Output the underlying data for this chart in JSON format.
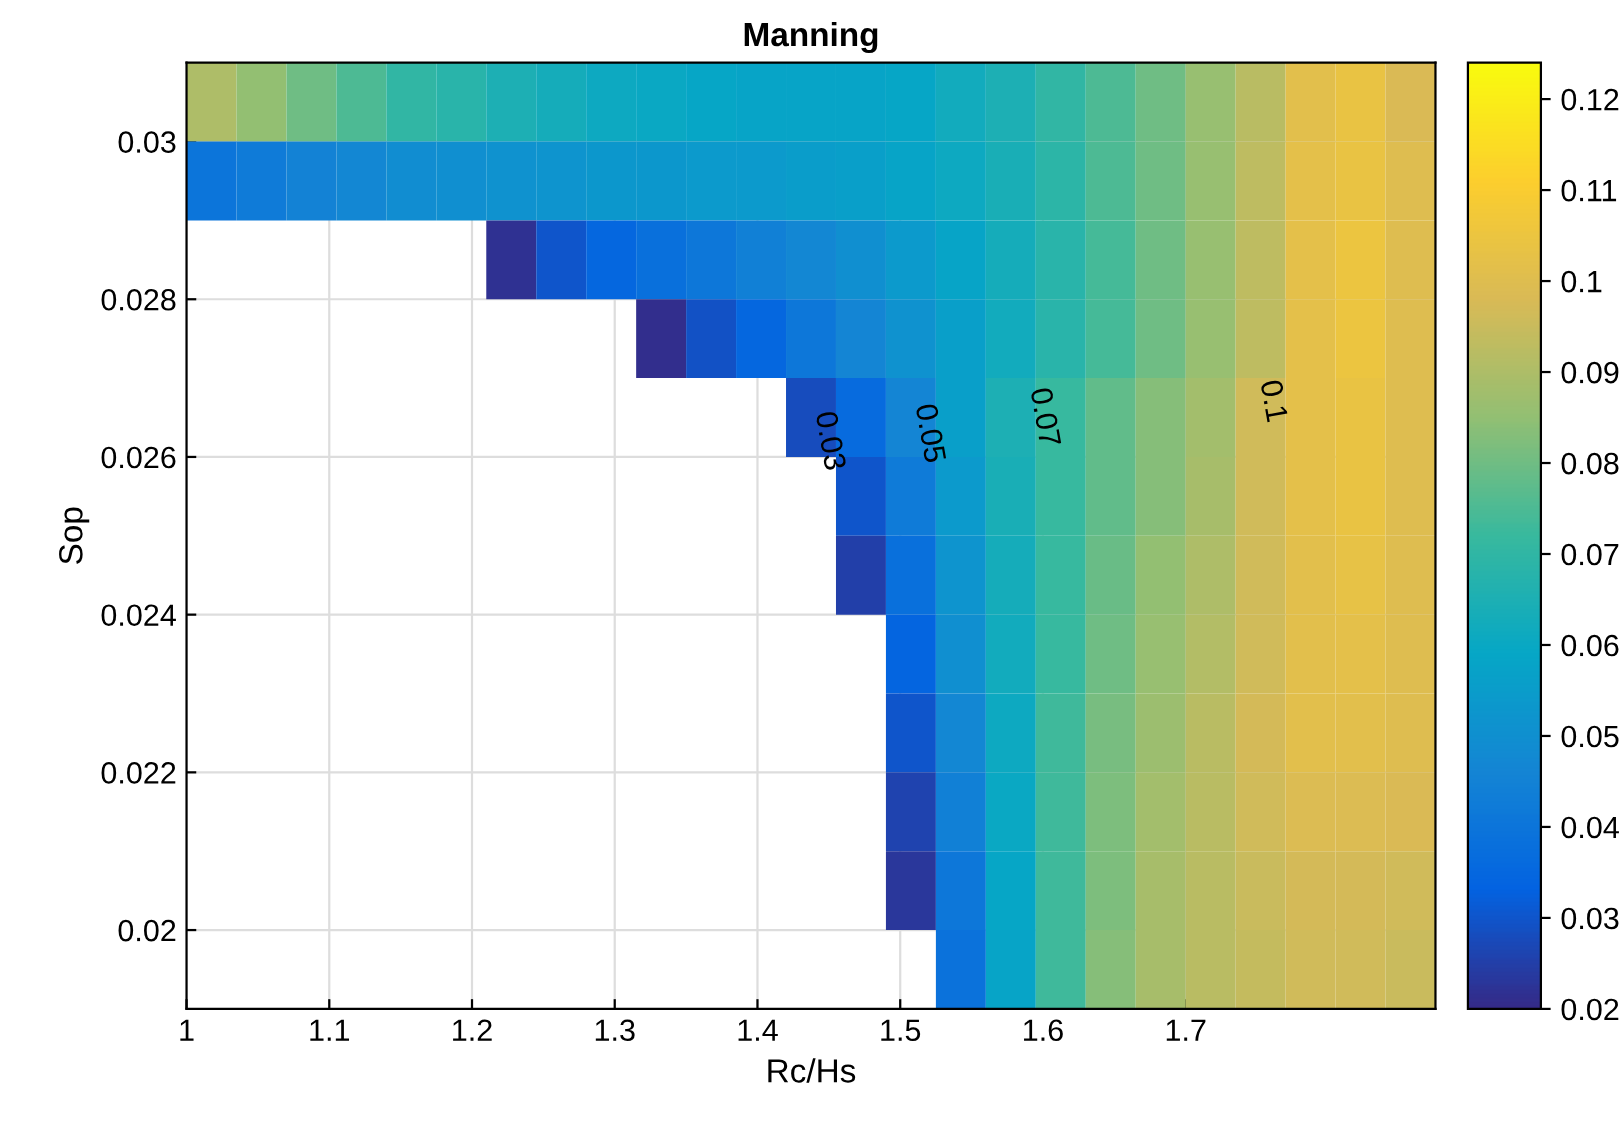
{
  "chart_data": {
    "type": "heatmap",
    "title": "Manning",
    "xlabel": "Rc/Hs",
    "ylabel": "Sop",
    "xlim": [
      1,
      1.875
    ],
    "ylim": [
      0.019,
      0.031
    ],
    "xticks": [
      1,
      1.1,
      1.2,
      1.3,
      1.4,
      1.5,
      1.6,
      1.7
    ],
    "yticks": [
      0.02,
      0.022,
      0.024,
      0.026,
      0.028,
      0.03
    ],
    "clim": [
      0.02,
      0.124
    ],
    "cticks": [
      0.02,
      0.03,
      0.04,
      0.05,
      0.06,
      0.07,
      0.08,
      0.09,
      0.1,
      0.11,
      0.12
    ],
    "grid": true,
    "cells": [
      [
        0.09,
        0.085,
        0.08,
        0.075,
        0.07,
        0.068,
        0.065,
        0.063,
        0.061,
        0.06,
        0.059,
        0.058,
        0.058,
        0.058,
        0.059,
        0.062,
        0.065,
        0.07,
        0.075,
        0.08,
        0.086,
        0.092,
        0.101,
        0.104,
        0.098
      ],
      [
        0.04,
        0.042,
        0.045,
        0.047,
        0.049,
        0.05,
        0.051,
        0.052,
        0.053,
        0.053,
        0.054,
        0.054,
        0.055,
        0.056,
        0.058,
        0.061,
        0.064,
        0.069,
        0.075,
        0.08,
        0.086,
        0.093,
        0.102,
        0.104,
        0.1
      ],
      [
        null,
        null,
        null,
        null,
        null,
        null,
        0.022,
        0.03,
        0.035,
        0.038,
        0.041,
        0.044,
        0.047,
        0.05,
        0.054,
        0.058,
        0.063,
        0.068,
        0.074,
        0.08,
        0.086,
        0.093,
        0.102,
        0.105,
        0.1
      ],
      [
        null,
        null,
        null,
        null,
        null,
        null,
        null,
        null,
        null,
        0.021,
        0.029,
        0.035,
        0.041,
        0.046,
        0.051,
        0.056,
        0.062,
        0.068,
        0.074,
        0.08,
        0.086,
        0.093,
        0.102,
        0.105,
        0.1
      ],
      [
        null,
        null,
        null,
        null,
        null,
        null,
        null,
        null,
        null,
        null,
        null,
        null,
        0.028,
        0.036,
        0.046,
        0.056,
        0.065,
        0.072,
        0.078,
        0.083,
        0.088,
        0.096,
        0.102,
        0.104,
        0.1
      ],
      [
        null,
        null,
        null,
        null,
        null,
        null,
        null,
        null,
        null,
        null,
        null,
        null,
        null,
        0.03,
        0.042,
        0.054,
        0.064,
        0.072,
        0.078,
        0.083,
        0.089,
        0.096,
        0.102,
        0.104,
        0.1
      ],
      [
        null,
        null,
        null,
        null,
        null,
        null,
        null,
        null,
        null,
        null,
        null,
        null,
        null,
        0.025,
        0.038,
        0.052,
        0.063,
        0.072,
        0.079,
        0.085,
        0.09,
        0.096,
        0.101,
        0.103,
        0.1
      ],
      [
        null,
        null,
        null,
        null,
        null,
        null,
        null,
        null,
        null,
        null,
        null,
        null,
        null,
        null,
        0.034,
        0.05,
        0.062,
        0.072,
        0.08,
        0.086,
        0.091,
        0.096,
        0.101,
        0.102,
        0.1
      ],
      [
        null,
        null,
        null,
        null,
        null,
        null,
        null,
        null,
        null,
        null,
        null,
        null,
        null,
        null,
        0.03,
        0.047,
        0.061,
        0.073,
        0.081,
        0.087,
        0.092,
        0.097,
        0.101,
        0.101,
        0.1
      ],
      [
        null,
        null,
        null,
        null,
        null,
        null,
        null,
        null,
        null,
        null,
        null,
        null,
        null,
        null,
        0.026,
        0.044,
        0.06,
        0.073,
        0.082,
        0.088,
        0.092,
        0.096,
        0.099,
        0.099,
        0.098
      ],
      [
        null,
        null,
        null,
        null,
        null,
        null,
        null,
        null,
        null,
        null,
        null,
        null,
        null,
        null,
        0.023,
        0.041,
        0.059,
        0.073,
        0.082,
        0.089,
        0.092,
        0.095,
        0.097,
        0.097,
        0.096
      ],
      [
        null,
        null,
        null,
        null,
        null,
        null,
        null,
        null,
        null,
        null,
        null,
        null,
        null,
        null,
        null,
        0.039,
        0.058,
        0.073,
        0.083,
        0.089,
        0.092,
        0.094,
        0.096,
        0.096,
        0.095
      ]
    ],
    "annotations": [
      "0.03",
      "0.05",
      "0.07",
      "0.1"
    ]
  }
}
